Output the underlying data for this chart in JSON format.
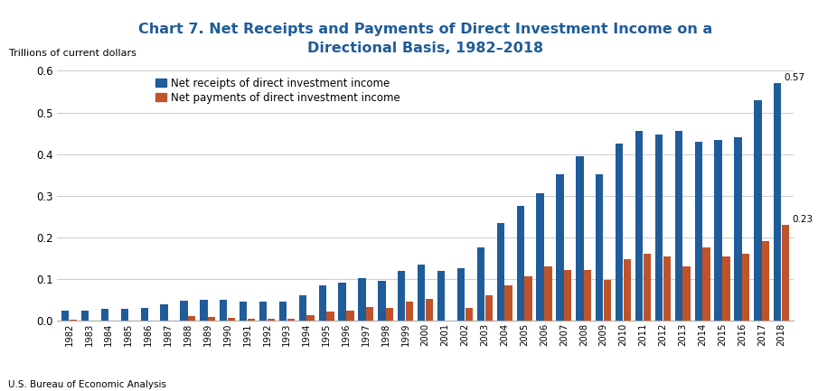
{
  "title": "Chart 7. Net Receipts and Payments of Direct Investment Income on a\nDirectional Basis, 1982–2018",
  "ylabel": "Trillions of current dollars",
  "footer": "U.S. Bureau of Economic Analysis",
  "title_color": "#1F5C99",
  "bar_color_receipts": "#1F5C99",
  "bar_color_payments": "#C0532A",
  "legend_receipts": "Net receipts of direct investment income",
  "legend_payments": "Net payments of direct investment income",
  "years": [
    1982,
    1983,
    1984,
    1985,
    1986,
    1987,
    1988,
    1989,
    1990,
    1991,
    1992,
    1993,
    1994,
    1995,
    1996,
    1997,
    1998,
    1999,
    2000,
    2001,
    2002,
    2003,
    2004,
    2005,
    2006,
    2007,
    2008,
    2009,
    2010,
    2011,
    2012,
    2013,
    2014,
    2015,
    2016,
    2017,
    2018
  ],
  "receipts": [
    0.023,
    0.025,
    0.028,
    0.028,
    0.03,
    0.04,
    0.048,
    0.05,
    0.05,
    0.046,
    0.045,
    0.045,
    0.06,
    0.085,
    0.092,
    0.102,
    0.095,
    0.12,
    0.135,
    0.12,
    0.125,
    0.175,
    0.235,
    0.275,
    0.305,
    0.352,
    0.395,
    0.352,
    0.425,
    0.455,
    0.447,
    0.455,
    0.43,
    0.435,
    0.44,
    0.53,
    0.57
  ],
  "payments": [
    0.002,
    0.0,
    0.0,
    0.0,
    0.0,
    0.0,
    0.01,
    0.008,
    0.007,
    0.005,
    0.005,
    0.005,
    0.013,
    0.022,
    0.025,
    0.033,
    0.03,
    0.045,
    0.052,
    0.0,
    0.03,
    0.06,
    0.085,
    0.107,
    0.13,
    0.122,
    0.122,
    0.098,
    0.148,
    0.16,
    0.155,
    0.13,
    0.175,
    0.155,
    0.16,
    0.192,
    0.23
  ],
  "ylim": [
    0.0,
    0.62
  ],
  "yticks": [
    0.0,
    0.1,
    0.2,
    0.3,
    0.4,
    0.5,
    0.6
  ],
  "annotation_2018_receipts": "0.57",
  "annotation_2018_payments": "0.23"
}
